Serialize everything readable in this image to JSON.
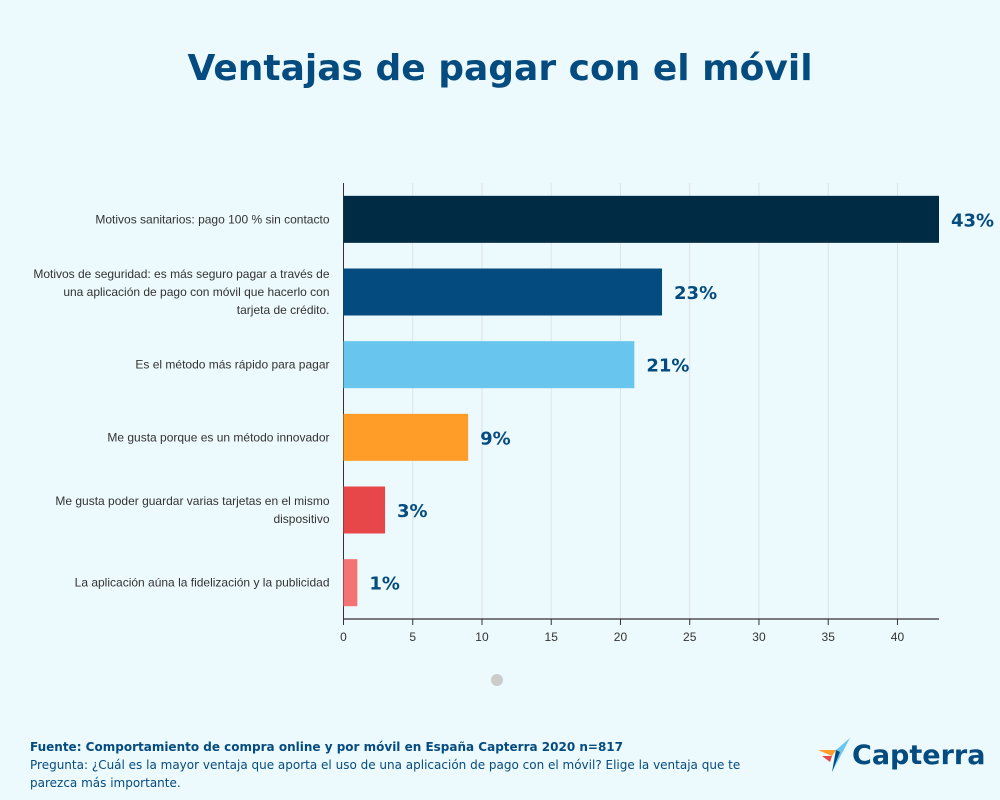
{
  "chart_data": {
    "type": "bar",
    "orientation": "horizontal",
    "title": "Ventajas de pagar con el móvil",
    "categories": [
      "Motivos sanitarios: pago 100 % sin contacto",
      "Motivos de seguridad: es más seguro pagar a través de una aplicación de pago con móvil que hacerlo con tarjeta de crédito.",
      "Es el método más rápido para pagar",
      "Me gusta porque es un método innovador",
      "Me gusta poder guardar varias tarjetas en el mismo dispositivo",
      "La aplicación aúna la fidelización y la publicidad"
    ],
    "category_lines": [
      [
        "Motivos sanitarios: pago 100 % sin contacto"
      ],
      [
        "Motivos de seguridad: es más seguro pagar a través de",
        "una aplicación de pago con móvil que hacerlo con",
        "tarjeta de crédito."
      ],
      [
        "Es el método más rápido para pagar"
      ],
      [
        "Me gusta porque es un método innovador"
      ],
      [
        "Me gusta poder guardar varias tarjetas en el mismo",
        "dispositivo"
      ],
      [
        "La aplicación aúna la fidelización y la publicidad"
      ]
    ],
    "values": [
      43,
      23,
      21,
      9,
      3,
      1
    ],
    "data_labels": [
      "43%",
      "23%",
      "21%",
      "9%",
      "3%",
      "1%"
    ],
    "colors": [
      "#002b45",
      "#044b7f",
      "#68c5ee",
      "#ff9d28",
      "#e8474a",
      "#f67373"
    ],
    "xlim": [
      0,
      43
    ],
    "xticks": [
      0,
      5,
      10,
      15,
      20,
      25,
      30,
      35,
      40
    ],
    "grid": true,
    "xlabel": "",
    "ylabel": ""
  },
  "footer": {
    "source": "Fuente: Comportamiento de compra online y por móvil en España Capterra 2020 n=817",
    "question": "Pregunta: ¿Cuál es la mayor ventaja que aporta el uso de una aplicación de pago con el móvil? Elige la ventaja que te parezca más importante."
  },
  "logo": {
    "text": "Capterra",
    "icon": "capterra-arrow-icon"
  }
}
